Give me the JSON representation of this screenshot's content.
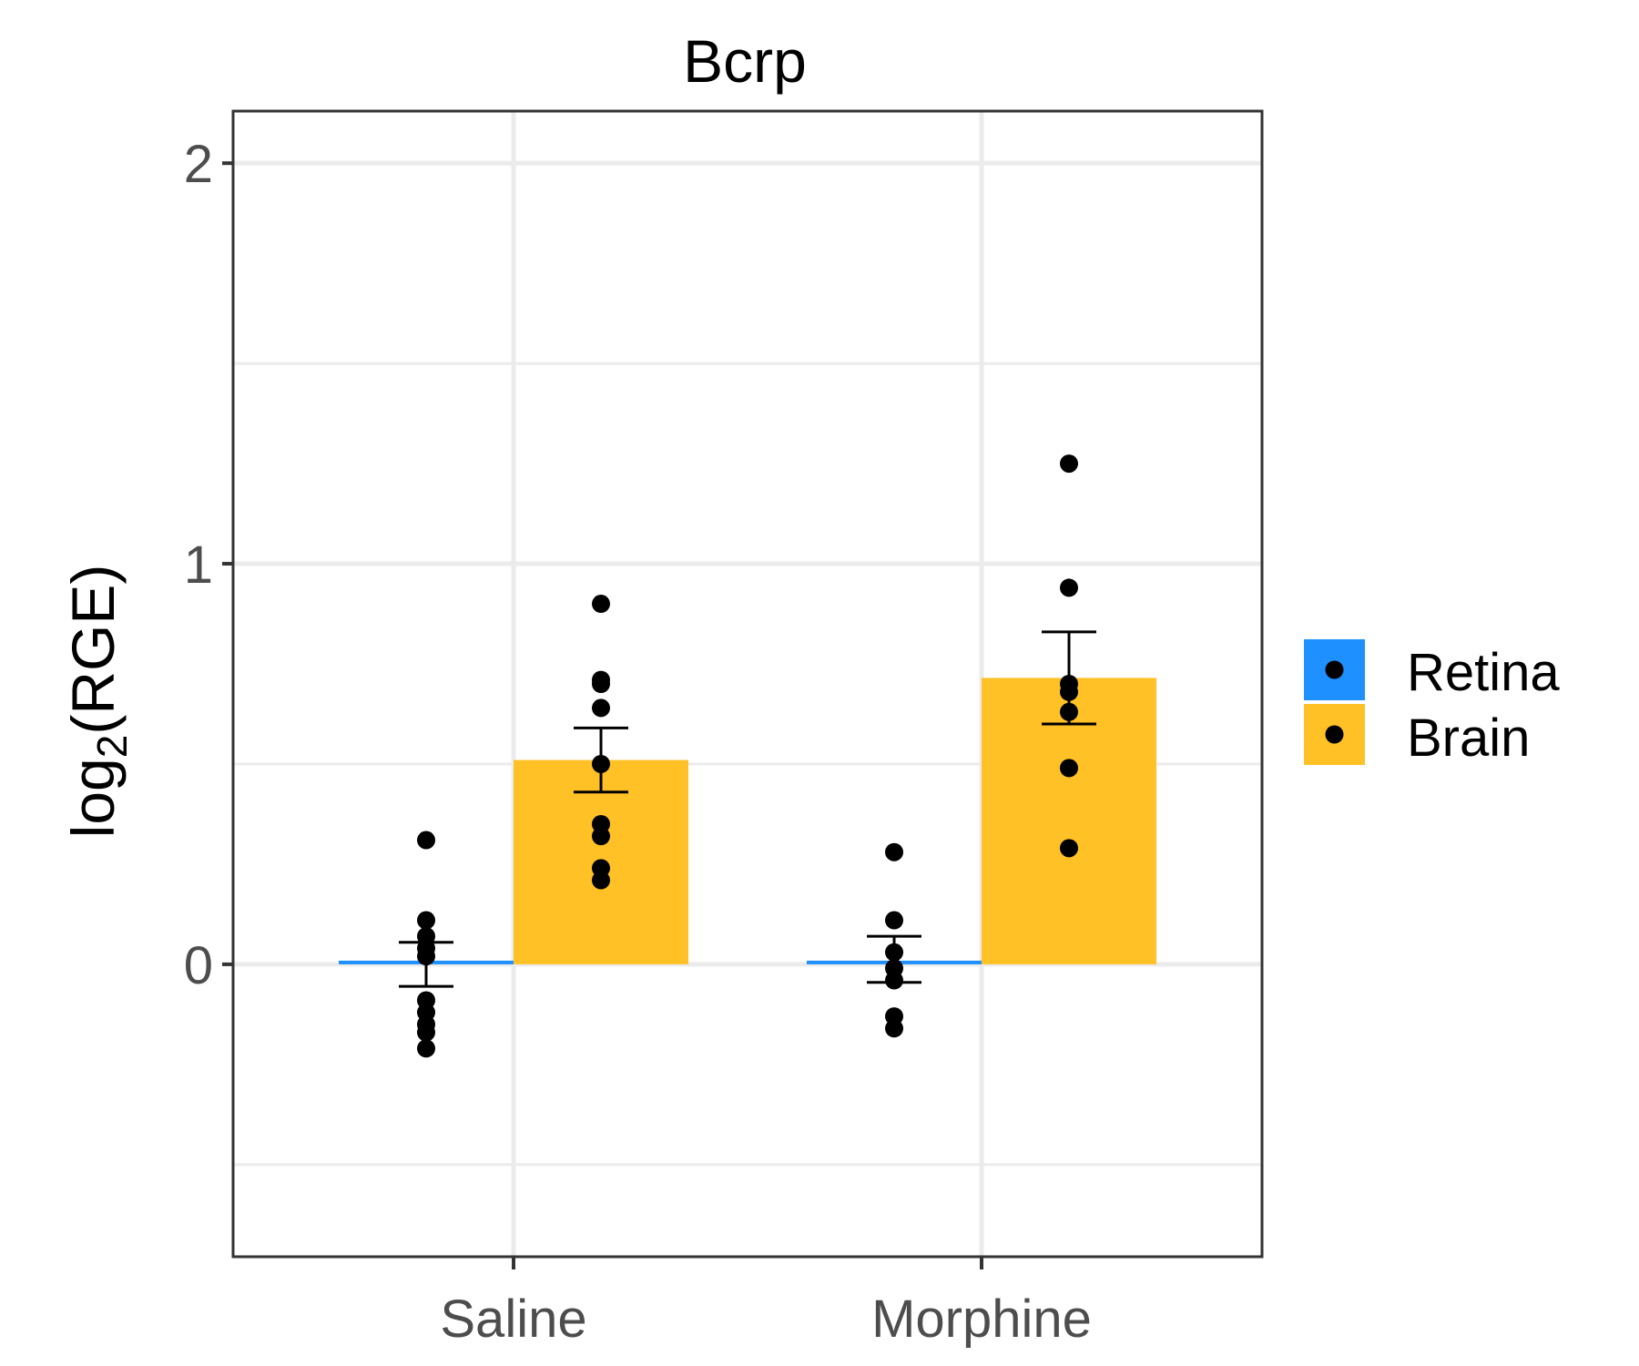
{
  "chart_data": {
    "type": "bar",
    "title": "Bcrp",
    "ylabel_base": "log",
    "ylabel_sub": "2",
    "ylabel_paren": "(RGE)",
    "xlabel": "",
    "categories": [
      "Saline",
      "Morphine"
    ],
    "ylim": [
      -0.73,
      2.13
    ],
    "yticks": [
      0,
      1,
      2
    ],
    "ytick_labels": [
      "0",
      "1",
      "2"
    ],
    "minor_gridlines": [
      -0.5,
      0.5,
      1.5
    ],
    "grid": true,
    "legend_position": "right",
    "series": [
      {
        "name": "Retina",
        "color": "#1E90FF",
        "values": [
          0.0,
          0.0
        ],
        "error_low": [
          -0.055,
          -0.045
        ],
        "error_high": [
          0.055,
          0.07
        ],
        "points": [
          [
            0.31,
            0.11,
            0.07,
            0.04,
            0.02,
            -0.09,
            -0.12,
            -0.15,
            -0.17,
            -0.21
          ],
          [
            0.28,
            0.11,
            0.03,
            -0.01,
            -0.04,
            -0.13,
            -0.16
          ]
        ]
      },
      {
        "name": "Brain",
        "color": "#FFC125",
        "values": [
          0.51,
          0.715
        ],
        "error_low": [
          0.43,
          0.6
        ],
        "error_high": [
          0.59,
          0.83
        ],
        "points": [
          [
            0.9,
            0.71,
            0.7,
            0.64,
            0.5,
            0.35,
            0.32,
            0.24,
            0.21
          ],
          [
            1.25,
            0.94,
            0.7,
            0.68,
            0.63,
            0.49,
            0.29
          ]
        ]
      }
    ]
  }
}
